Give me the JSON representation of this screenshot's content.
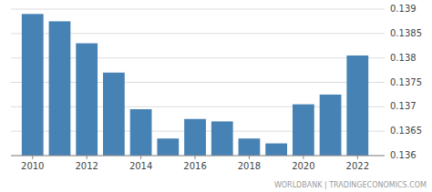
{
  "chart_data": {
    "type": "bar",
    "x": [
      2010,
      2011,
      2012,
      2013,
      2014,
      2015,
      2016,
      2017,
      2018,
      2019,
      2020,
      2021,
      2022
    ],
    "values": [
      0.1389,
      0.13875,
      0.1383,
      0.1377,
      0.13695,
      0.13635,
      0.13675,
      0.1367,
      0.13635,
      0.13625,
      0.13705,
      0.13725,
      0.13805
    ],
    "color": "#4682b4",
    "xlim": [
      2009.2,
      2023.0
    ],
    "xticks": [
      2010,
      2012,
      2014,
      2016,
      2018,
      2020,
      2022
    ],
    "ylim": [
      0.136,
      0.139
    ],
    "yticks": [
      0.136,
      0.1365,
      0.137,
      0.1375,
      0.138,
      0.1385,
      0.139
    ],
    "grid": true,
    "annotations": [
      "WORLDBANK | TRADINGECONOMICS.COM"
    ]
  }
}
